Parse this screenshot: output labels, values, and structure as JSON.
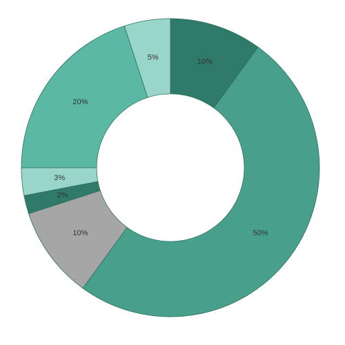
{
  "chart_data": {
    "type": "pie",
    "values": [
      10,
      50,
      10,
      2,
      3,
      20,
      5
    ],
    "value_labels": [
      "10%",
      "50%",
      "10%",
      "2%",
      "3%",
      "20%",
      "5%"
    ],
    "colors": [
      "#2f7a69",
      "#48a08c",
      "#a6a6a6",
      "#2f7a69",
      "#9ad5c9",
      "#5bb8a4",
      "#9ad5c9"
    ]
  }
}
